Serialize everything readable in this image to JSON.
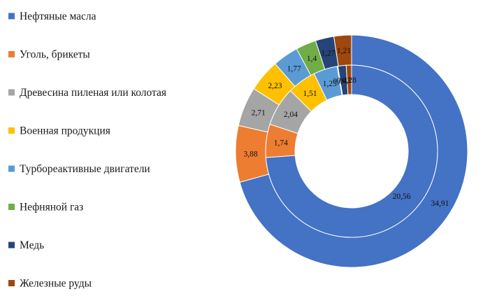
{
  "chart_data": {
    "type": "doughnut",
    "categories": [
      "Нефтяные масла",
      "Уголь, брикеты",
      "Древесина пиленая или колотая",
      "Военная продукция",
      "Турбореактивные двигатели",
      "Нефняной газ",
      "Медь",
      "Железные руды"
    ],
    "colors": [
      "#4472C4",
      "#ED7D31",
      "#A5A5A5",
      "#FFC000",
      "#5B9BD5",
      "#70AD47",
      "#264478",
      "#9E480E"
    ],
    "series": [
      {
        "ring": "outer",
        "values": [
          34.91,
          3.88,
          2.71,
          2.23,
          1.77,
          1.4,
          1.27,
          1.21
        ],
        "labels": [
          "34,91",
          "3,88",
          "2,71",
          "2,23",
          "1,77",
          "1,4",
          "1,27",
          "1,21"
        ]
      },
      {
        "ring": "inner",
        "values": [
          20.56,
          1.74,
          2.04,
          1.51,
          1.25,
          0.04,
          0.43,
          0.28
        ],
        "labels": [
          "20,56",
          "1,74",
          "2,04",
          "1,51",
          "1,25",
          "0,04",
          "0,43",
          "0,28"
        ]
      }
    ],
    "legend_position": "left",
    "title": ""
  }
}
